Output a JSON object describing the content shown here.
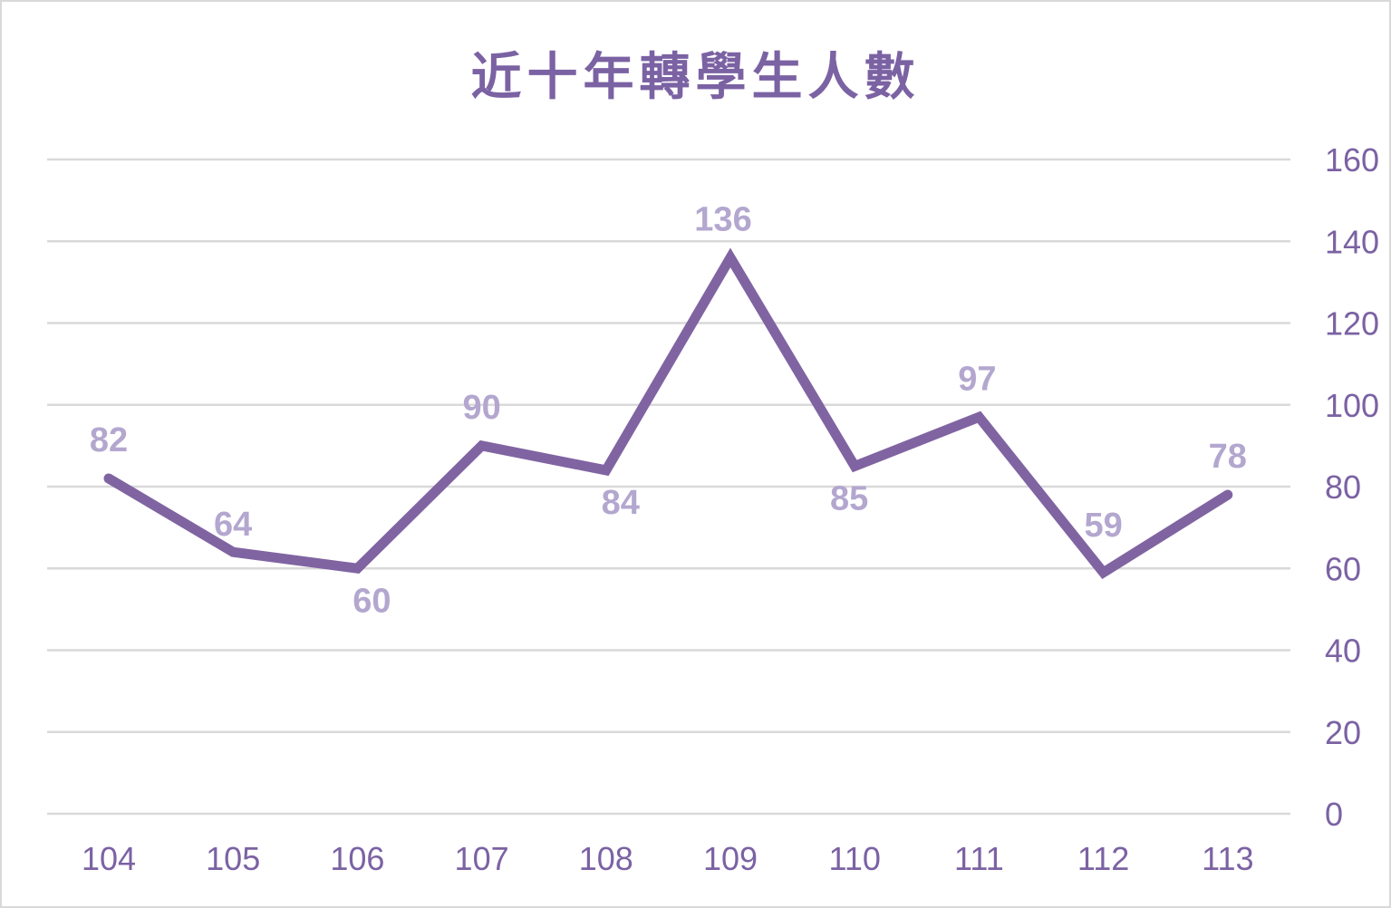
{
  "chart_data": {
    "type": "line",
    "title": "近十年轉學生人數",
    "categories": [
      "104",
      "105",
      "106",
      "107",
      "108",
      "109",
      "110",
      "111",
      "112",
      "113"
    ],
    "series": [
      {
        "values": [
          82,
          64,
          60,
          90,
          84,
          136,
          85,
          97,
          59,
          78
        ]
      }
    ],
    "data_labels": [
      "82",
      "64",
      "60",
      "90",
      "84",
      "136",
      "85",
      "97",
      "59",
      "78"
    ],
    "y_ticks": [
      "0",
      "20",
      "40",
      "60",
      "80",
      "100",
      "120",
      "140",
      "160"
    ],
    "ylim": [
      0,
      160
    ],
    "y_axis_position": "right",
    "grid": true,
    "legend": false,
    "colors": {
      "line": "#8064a2",
      "title": "#7b62a3",
      "tick_labels": "#7b62a3",
      "data_labels": "#b3a7cf",
      "grid": "#d9d9d9"
    }
  }
}
